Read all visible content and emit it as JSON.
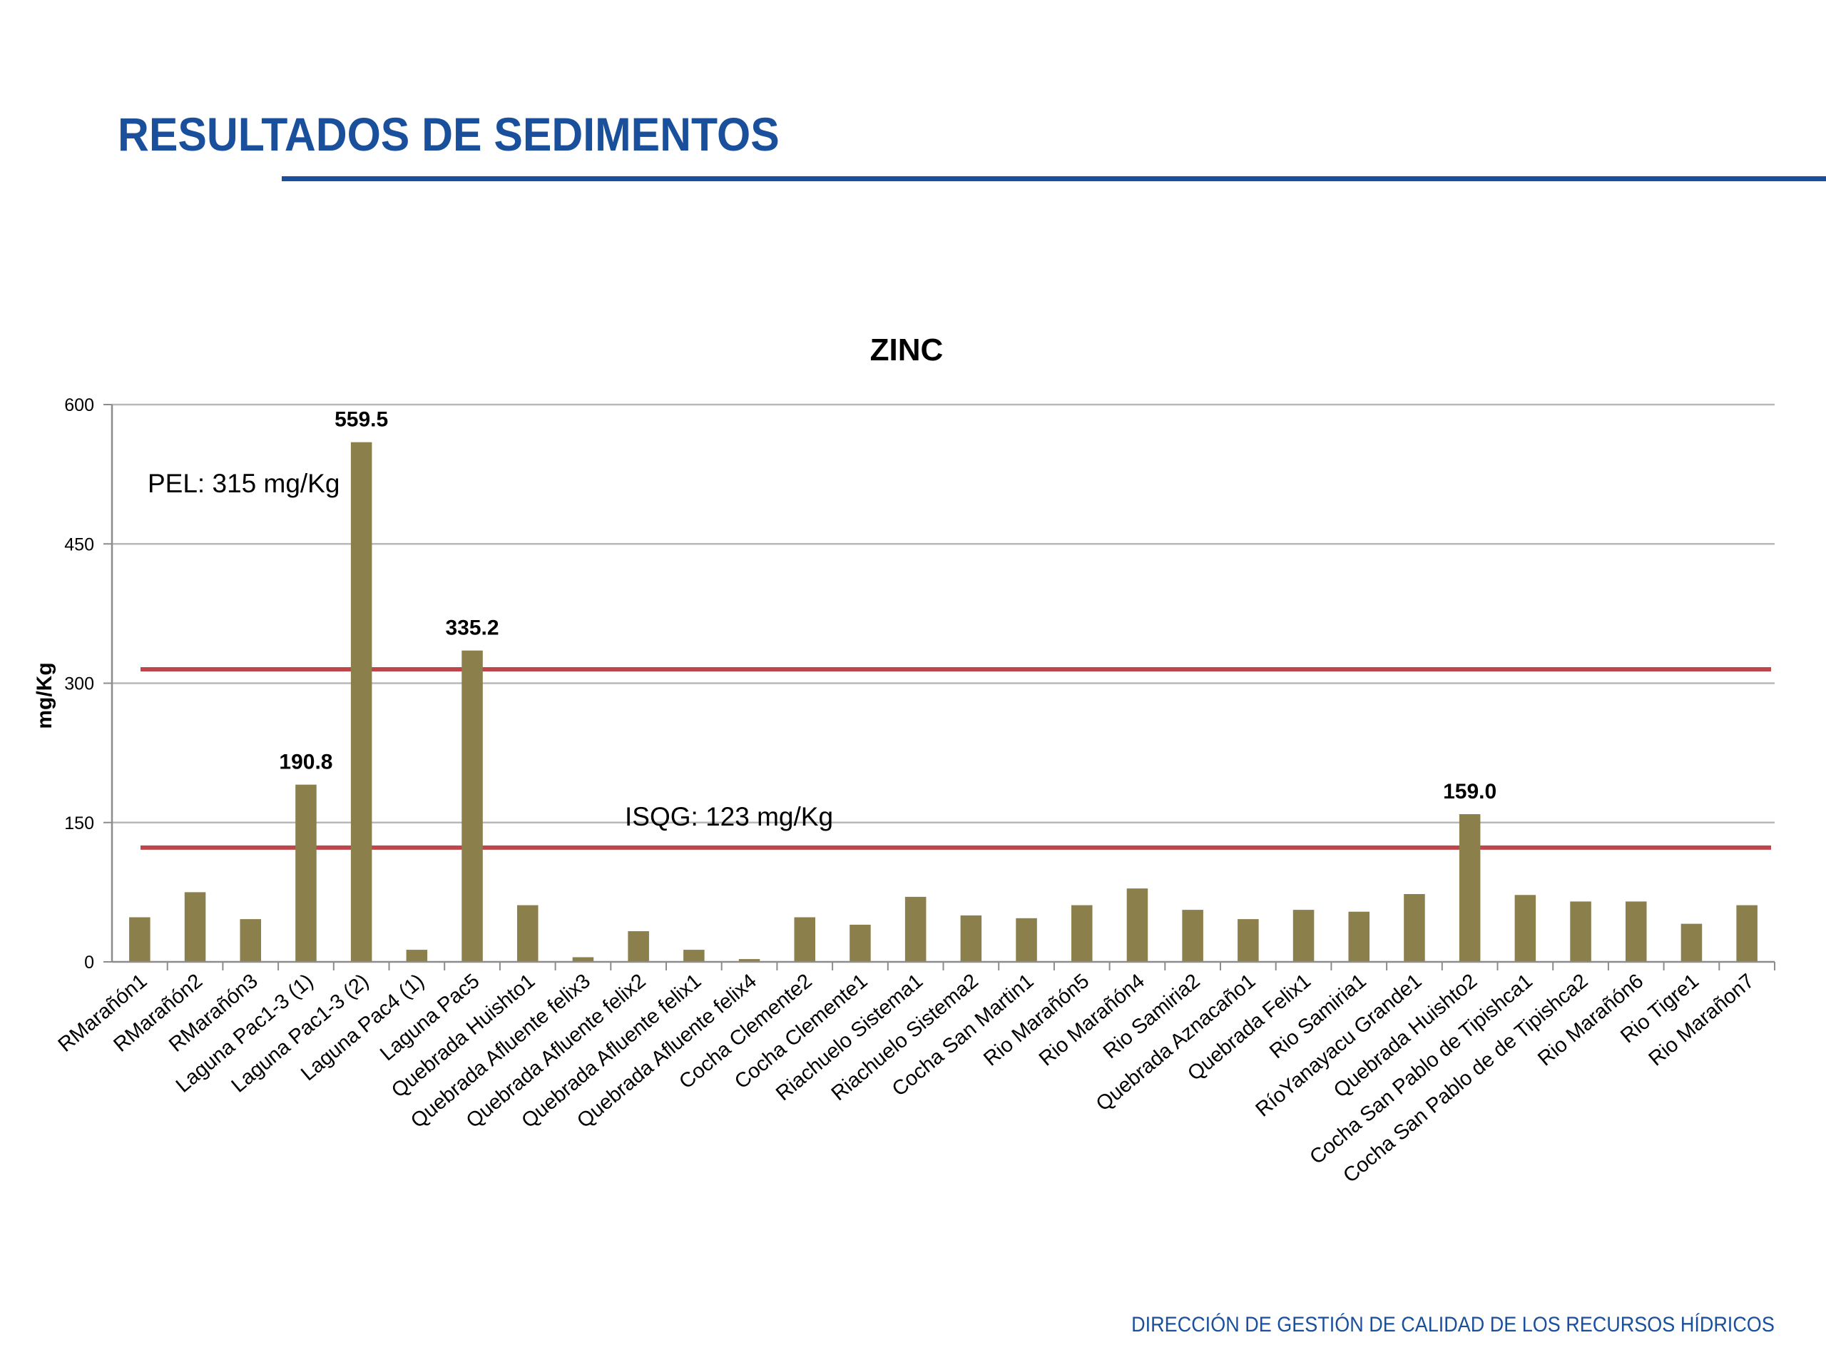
{
  "slide": {
    "title": "RESULTADOS DE SEDIMENTOS",
    "footer": "DIRECCIÓN DE GESTIÓN DE CALIDAD DE LOS RECURSOS HÍDRICOS"
  },
  "colors": {
    "title": "#1a4f9c",
    "bar": "#8b7f4c",
    "threshold": "#c0454a",
    "grid": "#b8b8b8"
  },
  "chart_data": {
    "type": "bar",
    "title": "ZINC",
    "xlabel": "",
    "ylabel": "mg/Kg",
    "ylim": [
      0,
      600
    ],
    "yticks": [
      0,
      150,
      300,
      450,
      600
    ],
    "grid": true,
    "categories": [
      "RMarañón1",
      "RMarañón2",
      "RMarañón3",
      "Laguna Pac1-3 (1)",
      "Laguna Pac1-3 (2)",
      "Laguna Pac4 (1)",
      "Laguna Pac5",
      "Quebrada Huishto1",
      "Quebrada Afluente felix3",
      "Quebrada Afluente felix2",
      "Quebrada Afluente felix1",
      "Quebrada Afluente felix4",
      "Cocha Clemente2",
      "Cocha Clemente1",
      "Riachuelo Sistema1",
      "Riachuelo Sistema2",
      "Cocha San Martin1",
      "Rio Marañón5",
      "Rio Marañón4",
      "Rio Samiria2",
      "Quebrada Aznacaño1",
      "Quebrada Felix1",
      "Rio Samiria1",
      "RíoYanayacu Grande1",
      "Quebrada Huishto2",
      "Cocha San Pablo de Tipishca1",
      "Cocha San Pablo de de Tipishca2",
      "Rio Marañón6",
      "Rio Tigre1",
      "Rio Marañon7"
    ],
    "values": [
      48,
      75,
      46,
      190.8,
      559.5,
      13,
      335.2,
      61,
      5,
      33,
      13,
      3,
      48,
      40,
      70,
      50,
      47,
      61,
      79,
      56,
      46,
      56,
      54,
      73,
      159.0,
      72,
      65,
      65,
      41,
      61
    ],
    "data_labels": [
      {
        "index": 3,
        "text": "190.8"
      },
      {
        "index": 4,
        "text": "559.5"
      },
      {
        "index": 6,
        "text": "335.2"
      },
      {
        "index": 24,
        "text": "159.0"
      }
    ],
    "thresholds": [
      {
        "name": "PEL",
        "value": 315,
        "label": "PEL: 315 mg/Kg"
      },
      {
        "name": "ISQG",
        "value": 123,
        "label": "ISQG: 123 mg/Kg"
      }
    ]
  }
}
